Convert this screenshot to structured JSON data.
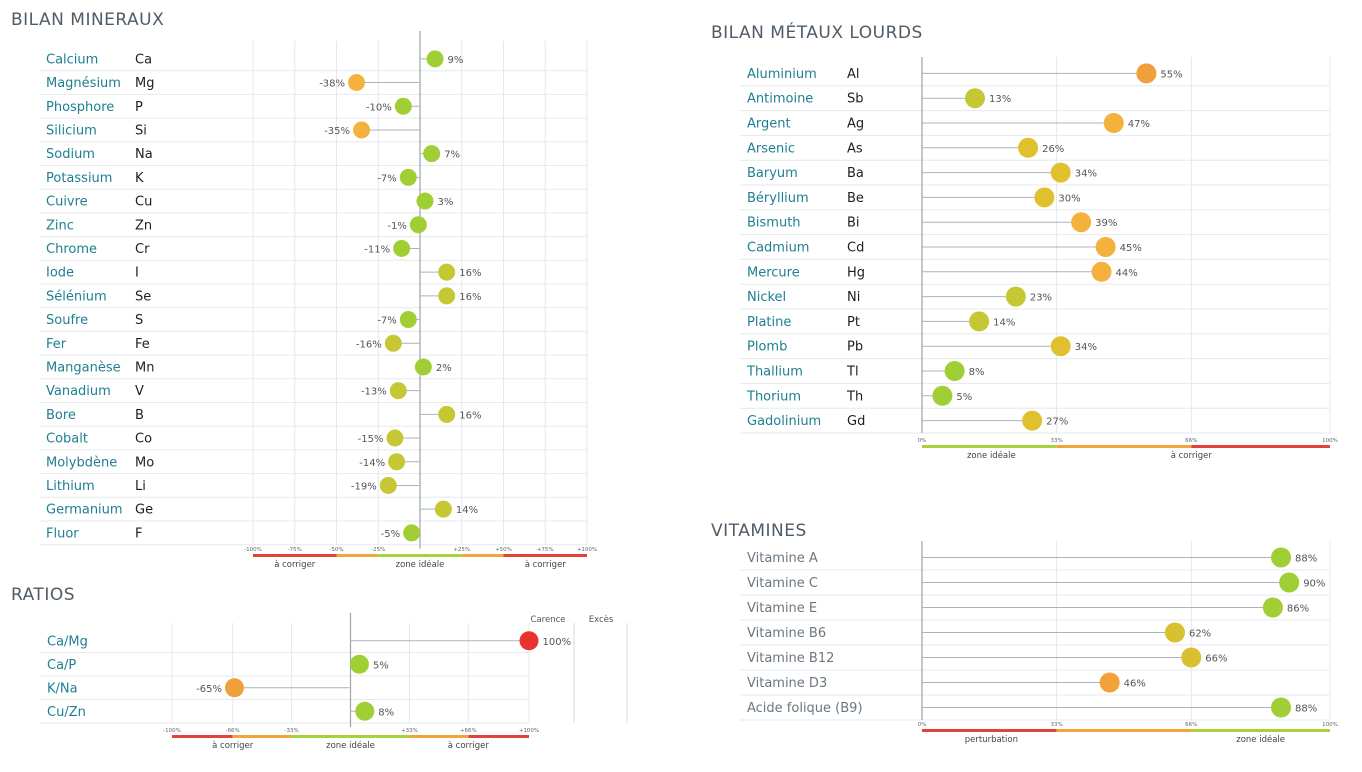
{
  "minerals": {
    "title": "BILAN MINERAUX",
    "rows": [
      {
        "name": "Calcium",
        "symbol": "Ca",
        "value": 9,
        "label": "9%"
      },
      {
        "name": "Magnésium",
        "symbol": "Mg",
        "value": -38,
        "label": "-38%"
      },
      {
        "name": "Phosphore",
        "symbol": "P",
        "value": -10,
        "label": "-10%"
      },
      {
        "name": "Silicium",
        "symbol": "Si",
        "value": -35,
        "label": "-35%"
      },
      {
        "name": "Sodium",
        "symbol": "Na",
        "value": 7,
        "label": "7%"
      },
      {
        "name": "Potassium",
        "symbol": "K",
        "value": -7,
        "label": "-7%"
      },
      {
        "name": "Cuivre",
        "symbol": "Cu",
        "value": 3,
        "label": "3%"
      },
      {
        "name": "Zinc",
        "symbol": "Zn",
        "value": -1,
        "label": "-1%"
      },
      {
        "name": "Chrome",
        "symbol": "Cr",
        "value": -11,
        "label": "-11%"
      },
      {
        "name": "Iode",
        "symbol": "I",
        "value": 16,
        "label": "16%"
      },
      {
        "name": "Sélénium",
        "symbol": "Se",
        "value": 16,
        "label": "16%"
      },
      {
        "name": "Soufre",
        "symbol": "S",
        "value": -7,
        "label": "-7%"
      },
      {
        "name": "Fer",
        "symbol": "Fe",
        "value": -16,
        "label": "-16%"
      },
      {
        "name": "Manganèse",
        "symbol": "Mn",
        "value": 2,
        "label": "2%"
      },
      {
        "name": "Vanadium",
        "symbol": "V",
        "value": -13,
        "label": "-13%"
      },
      {
        "name": "Bore",
        "symbol": "B",
        "value": 16,
        "label": "16%"
      },
      {
        "name": "Cobalt",
        "symbol": "Co",
        "value": -15,
        "label": "-15%"
      },
      {
        "name": "Molybdène",
        "symbol": "Mo",
        "value": -14,
        "label": "-14%"
      },
      {
        "name": "Lithium",
        "symbol": "Li",
        "value": -19,
        "label": "-19%"
      },
      {
        "name": "Germanium",
        "symbol": "Ge",
        "value": 14,
        "label": "14%"
      },
      {
        "name": "Fluor",
        "symbol": "F",
        "value": -5,
        "label": "-5%"
      }
    ],
    "ticks": [
      {
        "v": -100,
        "t": "-100%"
      },
      {
        "v": -75,
        "t": "-75%"
      },
      {
        "v": -50,
        "t": "-50%"
      },
      {
        "v": -25,
        "t": "-25%"
      },
      {
        "v": 25,
        "t": "+25%"
      },
      {
        "v": 50,
        "t": "+50%"
      },
      {
        "v": 75,
        "t": "+75%"
      },
      {
        "v": 100,
        "t": "+100%"
      }
    ],
    "zones": [
      "à corriger",
      "zone idéale",
      "à corriger"
    ],
    "xlim": [
      -100,
      100
    ]
  },
  "ratios": {
    "title": "RATIOS",
    "header_left": "Carence",
    "header_right": "Excès",
    "rows": [
      {
        "name": "Ca/Mg",
        "value": 100,
        "label": "100%"
      },
      {
        "name": "Ca/P",
        "value": 5,
        "label": "5%"
      },
      {
        "name": "K/Na",
        "value": -65,
        "label": "-65%"
      },
      {
        "name": "Cu/Zn",
        "value": 8,
        "label": "8%"
      }
    ],
    "ticks": [
      {
        "v": -100,
        "t": "-100%"
      },
      {
        "v": -66,
        "t": "-66%"
      },
      {
        "v": -33,
        "t": "-33%"
      },
      {
        "v": 33,
        "t": "+33%"
      },
      {
        "v": 66,
        "t": "+66%"
      },
      {
        "v": 100,
        "t": "+100%"
      }
    ],
    "zones": [
      "à corriger",
      "zone idéale",
      "à corriger"
    ],
    "xlim": [
      -100,
      100
    ]
  },
  "metals": {
    "title": "BILAN MÉTAUX LOURDS",
    "rows": [
      {
        "name": "Aluminium",
        "symbol": "Al",
        "value": 55,
        "label": "55%"
      },
      {
        "name": "Antimoine",
        "symbol": "Sb",
        "value": 13,
        "label": "13%"
      },
      {
        "name": "Argent",
        "symbol": "Ag",
        "value": 47,
        "label": "47%"
      },
      {
        "name": "Arsenic",
        "symbol": "As",
        "value": 26,
        "label": "26%"
      },
      {
        "name": "Baryum",
        "symbol": "Ba",
        "value": 34,
        "label": "34%"
      },
      {
        "name": "Béryllium",
        "symbol": "Be",
        "value": 30,
        "label": "30%"
      },
      {
        "name": "Bismuth",
        "symbol": "Bi",
        "value": 39,
        "label": "39%"
      },
      {
        "name": "Cadmium",
        "symbol": "Cd",
        "value": 45,
        "label": "45%"
      },
      {
        "name": "Mercure",
        "symbol": "Hg",
        "value": 44,
        "label": "44%"
      },
      {
        "name": "Nickel",
        "symbol": "Ni",
        "value": 23,
        "label": "23%"
      },
      {
        "name": "Platine",
        "symbol": "Pt",
        "value": 14,
        "label": "14%"
      },
      {
        "name": "Plomb",
        "symbol": "Pb",
        "value": 34,
        "label": "34%"
      },
      {
        "name": "Thallium",
        "symbol": "Tl",
        "value": 8,
        "label": "8%"
      },
      {
        "name": "Thorium",
        "symbol": "Th",
        "value": 5,
        "label": "5%"
      },
      {
        "name": "Gadolinium",
        "symbol": "Gd",
        "value": 27,
        "label": "27%"
      }
    ],
    "ticks": [
      {
        "v": 0,
        "t": "0%"
      },
      {
        "v": 33,
        "t": "33%"
      },
      {
        "v": 66,
        "t": "66%"
      },
      {
        "v": 100,
        "t": "100%"
      }
    ],
    "zones": [
      "zone idéale",
      "à corriger"
    ],
    "xlim": [
      0,
      100
    ]
  },
  "vitamins": {
    "title": "VITAMINES",
    "rows": [
      {
        "name": "Vitamine A",
        "value": 88,
        "label": "88%"
      },
      {
        "name": "Vitamine C",
        "value": 90,
        "label": "90%"
      },
      {
        "name": "Vitamine E",
        "value": 86,
        "label": "86%"
      },
      {
        "name": "Vitamine B6",
        "value": 62,
        "label": "62%"
      },
      {
        "name": "Vitamine B12",
        "value": 66,
        "label": "66%"
      },
      {
        "name": "Vitamine D3",
        "value": 46,
        "label": "46%"
      },
      {
        "name": "Acide folique (B9)",
        "value": 88,
        "label": "88%"
      }
    ],
    "ticks": [
      {
        "v": 0,
        "t": "0%"
      },
      {
        "v": 33,
        "t": "33%"
      },
      {
        "v": 66,
        "t": "66%"
      },
      {
        "v": 100,
        "t": "100%"
      }
    ],
    "zones": [
      "perturbation",
      "zone idéale"
    ],
    "xlim": [
      0,
      100
    ]
  },
  "chart_data": [
    {
      "type": "scatter",
      "title": "BILAN MINERAUX",
      "categories": [
        "Calcium",
        "Magnésium",
        "Phosphore",
        "Silicium",
        "Sodium",
        "Potassium",
        "Cuivre",
        "Zinc",
        "Chrome",
        "Iode",
        "Sélénium",
        "Soufre",
        "Fer",
        "Manganèse",
        "Vanadium",
        "Bore",
        "Cobalt",
        "Molybdène",
        "Lithium",
        "Germanium",
        "Fluor"
      ],
      "values": [
        9,
        -38,
        -10,
        -35,
        7,
        -7,
        3,
        -1,
        -11,
        16,
        16,
        -7,
        -16,
        2,
        -13,
        16,
        -15,
        -14,
        -19,
        14,
        -5
      ],
      "xlim": [
        -100,
        100
      ]
    },
    {
      "type": "scatter",
      "title": "RATIOS",
      "categories": [
        "Ca/Mg",
        "Ca/P",
        "K/Na",
        "Cu/Zn"
      ],
      "values": [
        100,
        5,
        -65,
        8
      ],
      "xlim": [
        -100,
        100
      ]
    },
    {
      "type": "scatter",
      "title": "BILAN MÉTAUX LOURDS",
      "categories": [
        "Aluminium",
        "Antimoine",
        "Argent",
        "Arsenic",
        "Baryum",
        "Béryllium",
        "Bismuth",
        "Cadmium",
        "Mercure",
        "Nickel",
        "Platine",
        "Plomb",
        "Thallium",
        "Thorium",
        "Gadolinium"
      ],
      "values": [
        55,
        13,
        47,
        26,
        34,
        30,
        39,
        45,
        44,
        23,
        14,
        34,
        8,
        5,
        27
      ],
      "xlim": [
        0,
        100
      ]
    },
    {
      "type": "scatter",
      "title": "VITAMINES",
      "categories": [
        "Vitamine A",
        "Vitamine C",
        "Vitamine E",
        "Vitamine B6",
        "Vitamine B12",
        "Vitamine D3",
        "Acide folique (B9)"
      ],
      "values": [
        88,
        90,
        86,
        62,
        66,
        46,
        88
      ],
      "xlim": [
        0,
        100
      ]
    }
  ]
}
